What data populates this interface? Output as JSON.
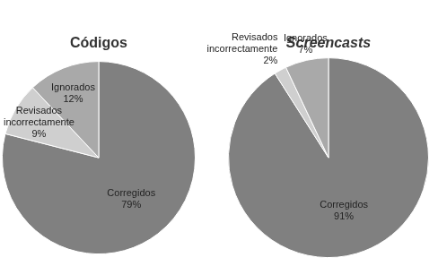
{
  "chart_data": [
    {
      "type": "pie",
      "title": "Códigos",
      "categories": [
        "Corregidos",
        "Revisados incorrectamente",
        "Ignorados"
      ],
      "values": [
        79,
        9,
        12
      ],
      "value_labels": [
        "79%",
        "9%",
        "12%"
      ],
      "colors": [
        "#808080",
        "#cfcfcf",
        "#a9a9a9"
      ],
      "data_labels": true
    },
    {
      "type": "pie",
      "title": "Screencasts",
      "categories": [
        "Corregidos",
        "Revisados incorrectamente",
        "Ignorados"
      ],
      "values": [
        91,
        2,
        7
      ],
      "value_labels": [
        "91%",
        "2%",
        "7%"
      ],
      "colors": [
        "#808080",
        "#cfcfcf",
        "#a9a9a9"
      ],
      "data_labels": true
    }
  ]
}
